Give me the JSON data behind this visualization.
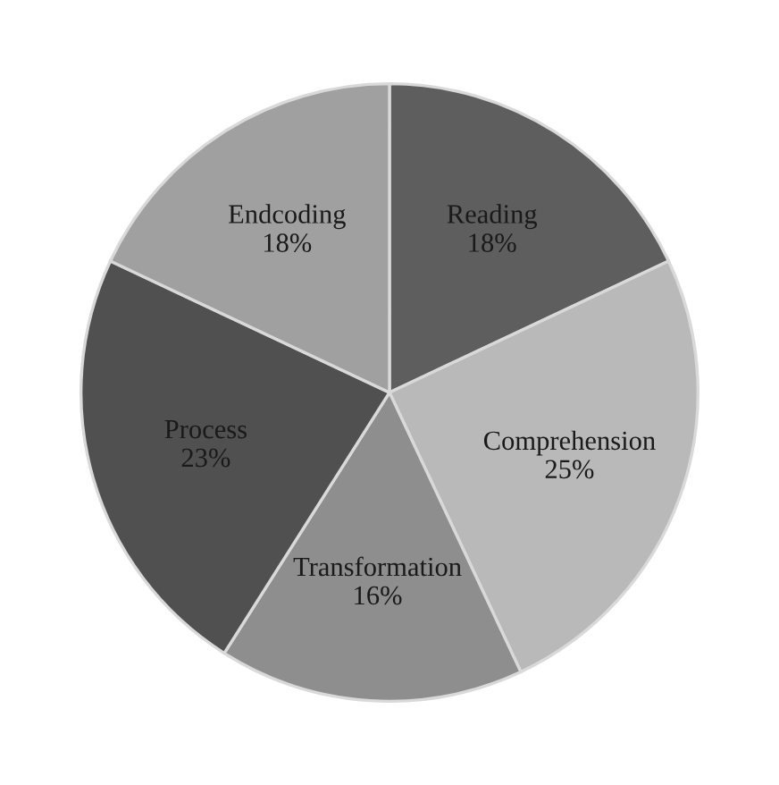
{
  "chart_data": {
    "type": "pie",
    "categories": [
      "Reading",
      "Comprehension",
      "Transformation",
      "Process",
      "Endcoding"
    ],
    "values": [
      18,
      25,
      16,
      23,
      18
    ],
    "colors": [
      "#5e5e5e",
      "#b9b9b9",
      "#8e8e8e",
      "#505050",
      "#a0a0a0"
    ],
    "value_labels": [
      "18%",
      "25%",
      "16%",
      "23%",
      "18%"
    ]
  }
}
